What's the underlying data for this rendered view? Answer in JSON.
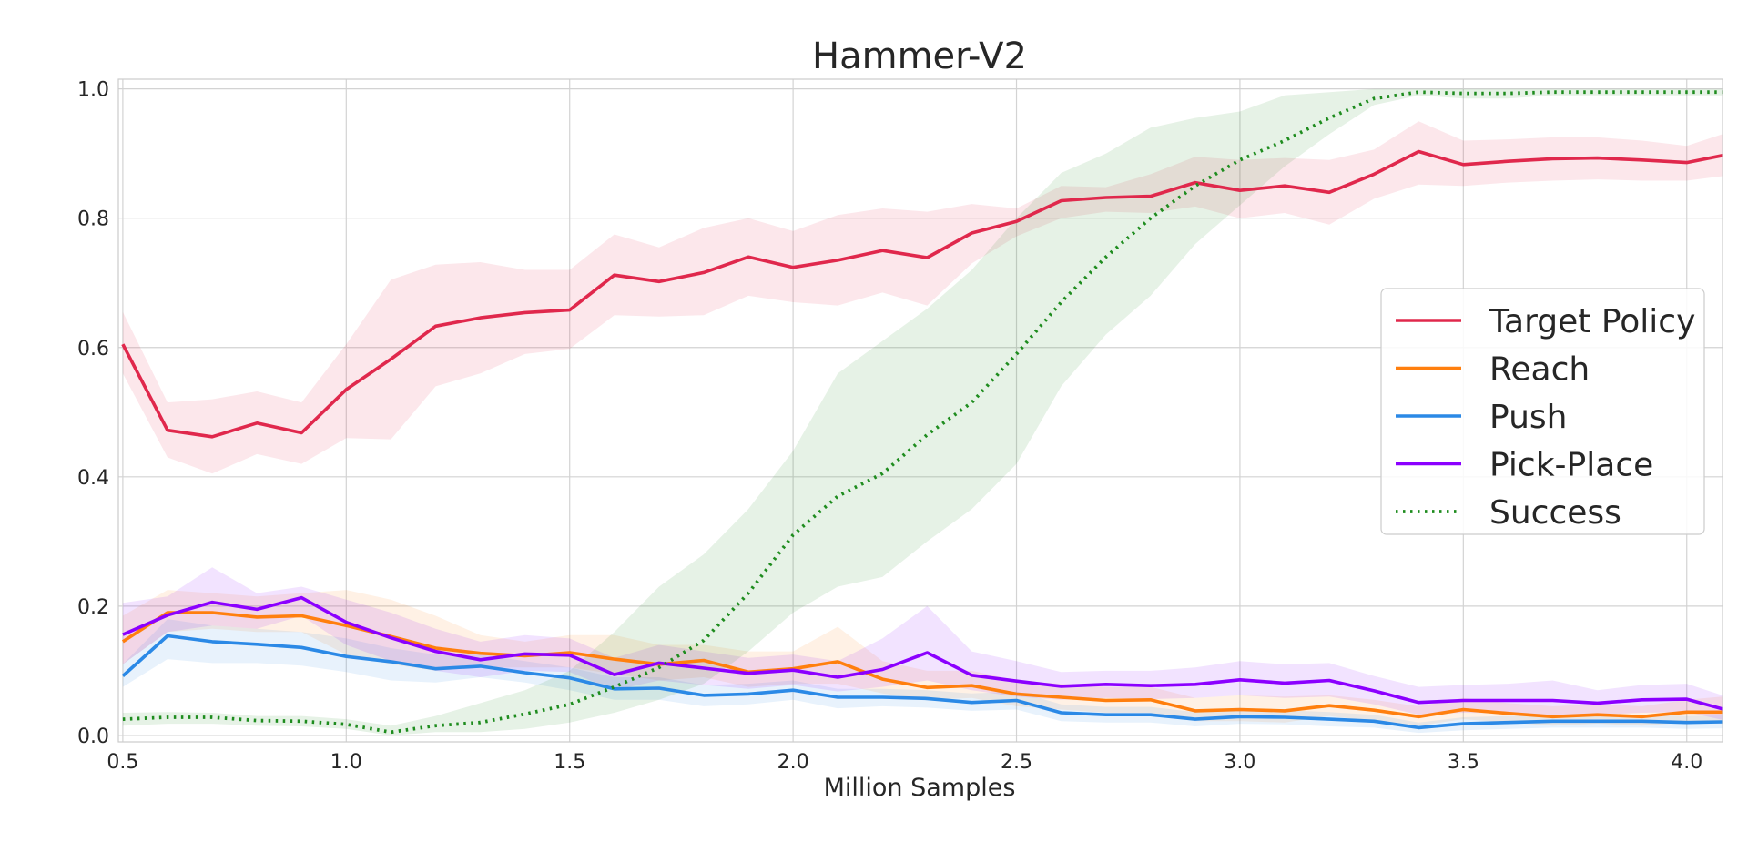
{
  "chart_data": {
    "type": "line",
    "title": "Hammer-V2",
    "xlabel": "Million Samples",
    "ylabel": "",
    "xlim": [
      0.49,
      4.08
    ],
    "ylim": [
      -0.01,
      1.015
    ],
    "xticks": [
      0.5,
      1.0,
      1.5,
      2.0,
      2.5,
      3.0,
      3.5,
      4.0
    ],
    "xtick_labels": [
      "0.5",
      "1.0",
      "1.5",
      "2.0",
      "2.5",
      "3.0",
      "3.5",
      "4.0"
    ],
    "yticks": [
      0.0,
      0.2,
      0.4,
      0.6,
      0.8,
      1.0
    ],
    "ytick_labels": [
      "0.0",
      "0.2",
      "0.4",
      "0.6",
      "0.8",
      "1.0"
    ],
    "grid": true,
    "legend_position": "center-right",
    "x": [
      0.5,
      0.6,
      0.7,
      0.8,
      0.9,
      1.0,
      1.1,
      1.2,
      1.3,
      1.4,
      1.5,
      1.6,
      1.7,
      1.8,
      1.9,
      2.0,
      2.1,
      2.2,
      2.3,
      2.4,
      2.5,
      2.6,
      2.7,
      2.8,
      2.9,
      3.0,
      3.1,
      3.2,
      3.3,
      3.4,
      3.5,
      3.6,
      3.7,
      3.8,
      3.9,
      4.0,
      4.08
    ],
    "series": [
      {
        "name": "Target Policy",
        "color": "#e0284c",
        "style": "solid",
        "values": [
          0.605,
          0.472,
          0.462,
          0.483,
          0.468,
          0.535,
          0.582,
          0.633,
          0.646,
          0.654,
          0.658,
          0.712,
          0.702,
          0.716,
          0.74,
          0.724,
          0.735,
          0.75,
          0.739,
          0.777,
          0.795,
          0.827,
          0.832,
          0.834,
          0.855,
          0.843,
          0.85,
          0.84,
          0.868,
          0.903,
          0.883,
          0.888,
          0.892,
          0.893,
          0.89,
          0.886,
          0.897
        ],
        "upper": [
          0.655,
          0.515,
          0.52,
          0.532,
          0.515,
          0.605,
          0.705,
          0.728,
          0.732,
          0.72,
          0.72,
          0.775,
          0.755,
          0.785,
          0.8,
          0.78,
          0.805,
          0.815,
          0.81,
          0.822,
          0.815,
          0.85,
          0.848,
          0.868,
          0.895,
          0.89,
          0.893,
          0.89,
          0.906,
          0.95,
          0.92,
          0.922,
          0.925,
          0.925,
          0.92,
          0.912,
          0.93
        ],
        "lower": [
          0.56,
          0.43,
          0.405,
          0.435,
          0.42,
          0.46,
          0.458,
          0.54,
          0.56,
          0.59,
          0.598,
          0.65,
          0.648,
          0.65,
          0.68,
          0.67,
          0.665,
          0.685,
          0.665,
          0.73,
          0.772,
          0.8,
          0.81,
          0.808,
          0.818,
          0.8,
          0.808,
          0.79,
          0.83,
          0.852,
          0.85,
          0.855,
          0.858,
          0.86,
          0.858,
          0.858,
          0.865
        ]
      },
      {
        "name": "Reach",
        "color": "#ff7f0e",
        "style": "solid",
        "values": [
          0.145,
          0.19,
          0.19,
          0.183,
          0.185,
          0.17,
          0.153,
          0.135,
          0.127,
          0.123,
          0.128,
          0.118,
          0.11,
          0.116,
          0.098,
          0.103,
          0.114,
          0.087,
          0.074,
          0.077,
          0.064,
          0.059,
          0.054,
          0.055,
          0.038,
          0.04,
          0.038,
          0.046,
          0.039,
          0.029,
          0.04,
          0.034,
          0.029,
          0.032,
          0.029,
          0.036,
          0.036
        ],
        "upper": [
          0.185,
          0.225,
          0.22,
          0.215,
          0.22,
          0.225,
          0.21,
          0.185,
          0.155,
          0.145,
          0.155,
          0.155,
          0.14,
          0.14,
          0.13,
          0.13,
          0.168,
          0.115,
          0.1,
          0.1,
          0.085,
          0.08,
          0.075,
          0.075,
          0.058,
          0.062,
          0.06,
          0.062,
          0.055,
          0.045,
          0.058,
          0.05,
          0.045,
          0.048,
          0.045,
          0.055,
          0.06
        ],
        "lower": [
          0.11,
          0.16,
          0.165,
          0.16,
          0.16,
          0.125,
          0.11,
          0.1,
          0.105,
          0.105,
          0.105,
          0.095,
          0.085,
          0.09,
          0.075,
          0.08,
          0.08,
          0.065,
          0.055,
          0.058,
          0.045,
          0.04,
          0.035,
          0.035,
          0.022,
          0.022,
          0.02,
          0.03,
          0.022,
          0.015,
          0.025,
          0.02,
          0.015,
          0.018,
          0.015,
          0.02,
          0.018
        ]
      },
      {
        "name": "Push",
        "color": "#2b89e6",
        "style": "solid",
        "values": [
          0.092,
          0.154,
          0.145,
          0.141,
          0.136,
          0.122,
          0.114,
          0.103,
          0.107,
          0.097,
          0.089,
          0.072,
          0.073,
          0.062,
          0.064,
          0.07,
          0.059,
          0.059,
          0.057,
          0.051,
          0.054,
          0.035,
          0.032,
          0.032,
          0.025,
          0.029,
          0.028,
          0.025,
          0.022,
          0.012,
          0.018,
          0.02,
          0.022,
          0.022,
          0.022,
          0.02,
          0.021
        ],
        "upper": [
          0.11,
          0.18,
          0.17,
          0.165,
          0.16,
          0.15,
          0.135,
          0.125,
          0.125,
          0.115,
          0.105,
          0.09,
          0.09,
          0.078,
          0.08,
          0.085,
          0.072,
          0.072,
          0.07,
          0.065,
          0.068,
          0.048,
          0.044,
          0.044,
          0.036,
          0.04,
          0.039,
          0.036,
          0.032,
          0.02,
          0.028,
          0.03,
          0.032,
          0.032,
          0.032,
          0.03,
          0.031
        ],
        "lower": [
          0.075,
          0.118,
          0.112,
          0.112,
          0.108,
          0.098,
          0.085,
          0.082,
          0.09,
          0.082,
          0.07,
          0.055,
          0.055,
          0.045,
          0.048,
          0.055,
          0.042,
          0.045,
          0.043,
          0.038,
          0.04,
          0.022,
          0.02,
          0.02,
          0.014,
          0.018,
          0.017,
          0.014,
          0.012,
          0.004,
          0.008,
          0.01,
          0.012,
          0.012,
          0.012,
          0.01,
          0.011
        ]
      },
      {
        "name": "Pick-Place",
        "color": "#8b00ff",
        "style": "solid",
        "values": [
          0.156,
          0.186,
          0.206,
          0.195,
          0.213,
          0.175,
          0.151,
          0.13,
          0.117,
          0.126,
          0.124,
          0.094,
          0.112,
          0.104,
          0.096,
          0.101,
          0.09,
          0.102,
          0.128,
          0.093,
          0.084,
          0.076,
          0.079,
          0.077,
          0.079,
          0.086,
          0.081,
          0.085,
          0.069,
          0.051,
          0.054,
          0.054,
          0.054,
          0.05,
          0.055,
          0.056,
          0.041
        ],
        "upper": [
          0.205,
          0.215,
          0.26,
          0.22,
          0.23,
          0.21,
          0.19,
          0.165,
          0.145,
          0.155,
          0.15,
          0.12,
          0.14,
          0.13,
          0.12,
          0.125,
          0.115,
          0.15,
          0.2,
          0.13,
          0.115,
          0.098,
          0.1,
          0.1,
          0.105,
          0.115,
          0.11,
          0.112,
          0.092,
          0.075,
          0.078,
          0.08,
          0.085,
          0.07,
          0.078,
          0.08,
          0.062
        ],
        "lower": [
          0.11,
          0.16,
          0.17,
          0.165,
          0.185,
          0.14,
          0.115,
          0.1,
          0.09,
          0.1,
          0.098,
          0.07,
          0.085,
          0.078,
          0.072,
          0.078,
          0.068,
          0.075,
          0.085,
          0.07,
          0.06,
          0.055,
          0.058,
          0.056,
          0.058,
          0.062,
          0.058,
          0.06,
          0.048,
          0.032,
          0.035,
          0.034,
          0.032,
          0.032,
          0.035,
          0.036,
          0.024
        ]
      },
      {
        "name": "Success",
        "color": "#1e8c1e",
        "style": "dotted",
        "values": [
          0.025,
          0.028,
          0.028,
          0.023,
          0.022,
          0.017,
          0.005,
          0.015,
          0.02,
          0.033,
          0.048,
          0.075,
          0.105,
          0.147,
          0.22,
          0.31,
          0.37,
          0.405,
          0.465,
          0.515,
          0.59,
          0.67,
          0.74,
          0.8,
          0.85,
          0.89,
          0.92,
          0.955,
          0.985,
          0.995,
          0.993,
          0.993,
          0.995,
          0.995,
          0.995,
          0.995,
          0.995
        ],
        "upper": [
          0.035,
          0.036,
          0.035,
          0.03,
          0.03,
          0.025,
          0.015,
          0.03,
          0.05,
          0.07,
          0.1,
          0.16,
          0.23,
          0.28,
          0.35,
          0.44,
          0.56,
          0.61,
          0.66,
          0.72,
          0.8,
          0.87,
          0.9,
          0.94,
          0.955,
          0.965,
          0.99,
          0.995,
          1.0,
          1.0,
          1.0,
          1.0,
          1.0,
          1.0,
          1.0,
          1.0,
          1.0
        ],
        "lower": [
          0.015,
          0.018,
          0.018,
          0.015,
          0.014,
          0.01,
          0.0,
          0.005,
          0.005,
          0.01,
          0.02,
          0.035,
          0.055,
          0.08,
          0.13,
          0.19,
          0.23,
          0.245,
          0.3,
          0.35,
          0.42,
          0.54,
          0.62,
          0.68,
          0.76,
          0.82,
          0.88,
          0.93,
          0.975,
          0.99,
          0.985,
          0.985,
          0.99,
          0.99,
          0.99,
          0.99,
          0.99
        ]
      }
    ]
  }
}
